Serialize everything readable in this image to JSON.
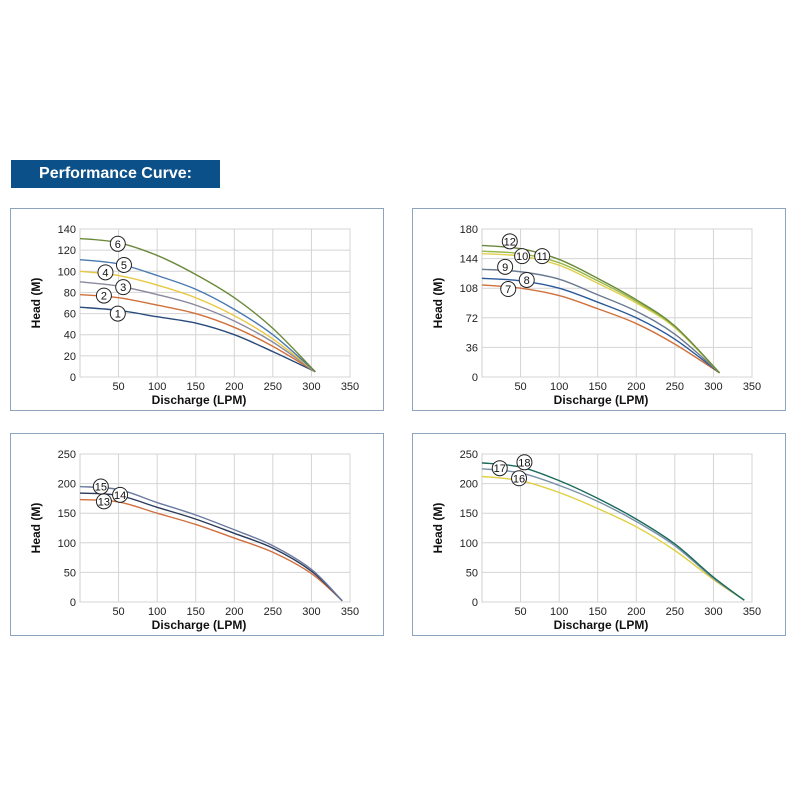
{
  "header": {
    "title": "Performance Curve:"
  },
  "chart_data": [
    {
      "type": "line",
      "xlabel": "Discharge (LPM)",
      "ylabel": "Head (M)",
      "xlim": [
        0,
        350
      ],
      "ylim": [
        0,
        140
      ],
      "xticks": [
        50,
        100,
        150,
        200,
        250,
        300,
        350
      ],
      "yticks": [
        0,
        20,
        40,
        60,
        80,
        100,
        120,
        140
      ],
      "grid": true,
      "x": [
        0,
        50,
        100,
        150,
        200,
        250,
        305
      ],
      "series": [
        {
          "name": "1",
          "color": "#2a4a7a",
          "values": [
            66,
            63,
            57,
            51,
            40,
            24,
            5
          ]
        },
        {
          "name": "2",
          "color": "#d0703a",
          "values": [
            78,
            75,
            68,
            60,
            47,
            29,
            5
          ]
        },
        {
          "name": "3",
          "color": "#8a8aa0",
          "values": [
            90,
            86,
            78,
            68,
            53,
            33,
            5
          ]
        },
        {
          "name": "4",
          "color": "#e8c840",
          "values": [
            100,
            96,
            87,
            75,
            58,
            36,
            5
          ]
        },
        {
          "name": "5",
          "color": "#4a7ab0",
          "values": [
            111,
            107,
            96,
            83,
            64,
            40,
            5
          ]
        },
        {
          "name": "6",
          "color": "#6a8a3a",
          "values": [
            131,
            127,
            115,
            97,
            75,
            46,
            5
          ]
        }
      ]
    },
    {
      "type": "line",
      "xlabel": "Discharge (LPM)",
      "ylabel": "Head (M)",
      "xlim": [
        0,
        350
      ],
      "ylim": [
        0,
        180
      ],
      "xticks": [
        50,
        100,
        150,
        200,
        250,
        300,
        350
      ],
      "yticks": [
        0,
        36,
        72,
        108,
        144,
        180
      ],
      "grid": true,
      "x": [
        0,
        50,
        100,
        150,
        200,
        250,
        308
      ],
      "series": [
        {
          "name": "7",
          "color": "#d0703a",
          "values": [
            112,
            108,
            99,
            83,
            65,
            40,
            5
          ]
        },
        {
          "name": "8",
          "color": "#2a5a9a",
          "values": [
            120,
            117,
            108,
            91,
            72,
            46,
            5
          ]
        },
        {
          "name": "9",
          "color": "#6a7a90",
          "values": [
            131,
            128,
            119,
            100,
            80,
            52,
            5
          ]
        },
        {
          "name": "10",
          "color": "#e0d050",
          "values": [
            150,
            147,
            136,
            114,
            90,
            60,
            5
          ]
        },
        {
          "name": "11",
          "color": "#9ab84a",
          "values": [
            153,
            150,
            139,
            117,
            92,
            61,
            5
          ]
        },
        {
          "name": "12",
          "color": "#6a8a3a",
          "values": [
            160,
            156,
            143,
            120,
            94,
            62,
            5
          ]
        }
      ]
    },
    {
      "type": "line",
      "xlabel": "Discharge (LPM)",
      "ylabel": "Head (M)",
      "xlim": [
        0,
        350
      ],
      "ylim": [
        0,
        250
      ],
      "xticks": [
        50,
        100,
        150,
        200,
        250,
        300,
        350
      ],
      "yticks": [
        0,
        50,
        100,
        150,
        200,
        250
      ],
      "grid": true,
      "x": [
        0,
        50,
        100,
        150,
        200,
        250,
        300,
        340
      ],
      "series": [
        {
          "name": "13",
          "color": "#d07040",
          "values": [
            173,
            169,
            150,
            131,
            108,
            84,
            48,
            2
          ]
        },
        {
          "name": "14",
          "color": "#2a3a5a",
          "values": [
            184,
            180,
            160,
            140,
            116,
            91,
            52,
            2
          ]
        },
        {
          "name": "15",
          "color": "#6a7aa0",
          "values": [
            195,
            190,
            168,
            147,
            122,
            95,
            55,
            2
          ]
        }
      ]
    },
    {
      "type": "line",
      "xlabel": "Discharge (LPM)",
      "ylabel": "Head (M)",
      "xlim": [
        0,
        350
      ],
      "ylim": [
        0,
        250
      ],
      "xticks": [
        50,
        100,
        150,
        200,
        250,
        300,
        350
      ],
      "yticks": [
        0,
        50,
        100,
        150,
        200,
        250
      ],
      "grid": true,
      "x": [
        0,
        50,
        100,
        150,
        200,
        250,
        300,
        340
      ],
      "series": [
        {
          "name": "16",
          "color": "#e0d040",
          "values": [
            212,
            205,
            185,
            158,
            127,
            87,
            38,
            3
          ]
        },
        {
          "name": "17",
          "color": "#7a90a8",
          "values": [
            225,
            218,
            197,
            170,
            136,
            95,
            40,
            3
          ]
        },
        {
          "name": "18",
          "color": "#1a6a5a",
          "values": [
            235,
            228,
            205,
            175,
            140,
            98,
            42,
            3
          ]
        }
      ]
    }
  ]
}
